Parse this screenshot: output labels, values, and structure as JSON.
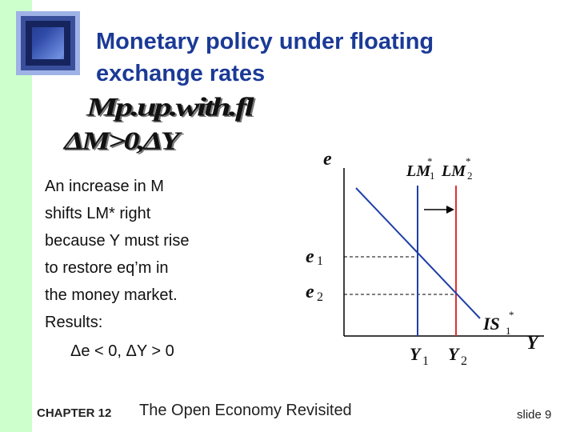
{
  "slide": {
    "title_line1": "Monetary policy under floating",
    "title_line2": "exchange rates",
    "wordart_line1": "Mp.up.with.fl",
    "wordart_line2": "ΔM>0,ΔY",
    "body_lines": [
      "An increase in M",
      "shifts LM* right",
      "because Y  must rise",
      "to restore eq’m in",
      "the money market.",
      "Results:"
    ],
    "result": "Δe < 0,  ΔY  > 0",
    "chapter": "CHAPTER 12",
    "book_title": "The Open Economy Revisited",
    "slide_number": "slide 9"
  },
  "diagram": {
    "y_axis_label": "e",
    "x_axis_label": "Y",
    "lm1_label": "LM",
    "lm1_star": "*",
    "lm1_sub": "1",
    "lm2_label": "LM",
    "lm2_star": "*",
    "lm2_sub": "2",
    "is_label": "IS",
    "is_star": "*",
    "is_sub": "1",
    "e1_label": "e",
    "e1_sub": "1",
    "e2_label": "e",
    "e2_sub": "2",
    "y1_label": "Y",
    "y1_sub": "1",
    "y2_label": "Y",
    "y2_sub": "2",
    "colors": {
      "lm1": "#1f3fa8",
      "lm2": "#e03030",
      "is": "#1f3fa8",
      "axes": "#000000",
      "title": "#1b3a96",
      "left_bar": "#ccffcc"
    }
  }
}
